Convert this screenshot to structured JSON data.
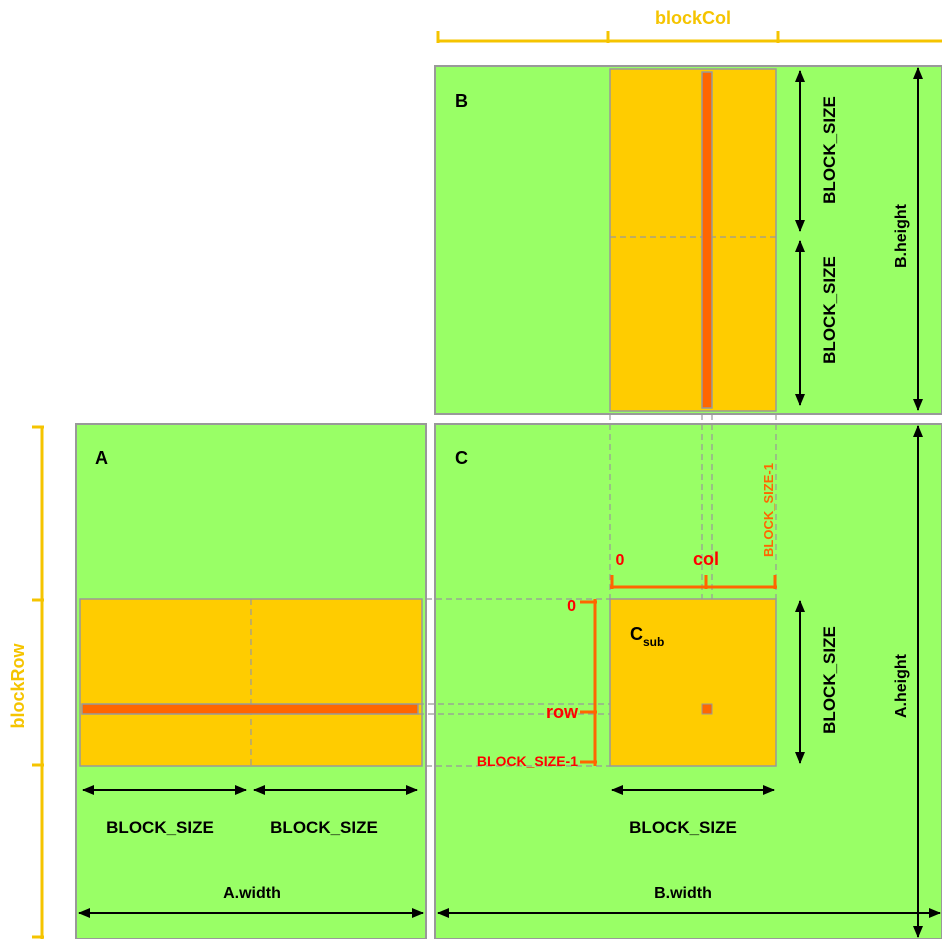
{
  "colors": {
    "matrix_fill": "#99ff66",
    "matrix_stroke": "#999999",
    "block_fill": "#ffcc00",
    "row_col_fill": "#ff6600",
    "bracket_gold": "#f5c400",
    "index_red": "#ff0000",
    "index_orange": "#ff6600",
    "arrow": "#000000",
    "dashed": "#999999"
  },
  "labels": {
    "matrix_a": "A",
    "matrix_b": "B",
    "matrix_c": "C",
    "block_col": "blockCol",
    "block_row": "blockRow",
    "block_size_a_left": "BLOCK_SIZE",
    "block_size_a_right": "BLOCK_SIZE",
    "block_size_c_horizontal": "BLOCK_SIZE",
    "block_size_c_vertical": "BLOCK_SIZE",
    "block_size_b_top": "BLOCK_SIZE",
    "block_size_b_bottom": "BLOCK_SIZE",
    "a_width": "A.width",
    "b_width": "B.width",
    "a_height": "A.height",
    "b_height": "B.height",
    "c_sub_main": "C",
    "c_sub_subscript": "sub",
    "row_index_zero": "0",
    "row_index_row": "row",
    "row_index_last": "BLOCK_SIZE-1",
    "col_index_zero": "0",
    "col_index_col": "col",
    "col_index_last": "BLOCK_SIZE-1"
  }
}
